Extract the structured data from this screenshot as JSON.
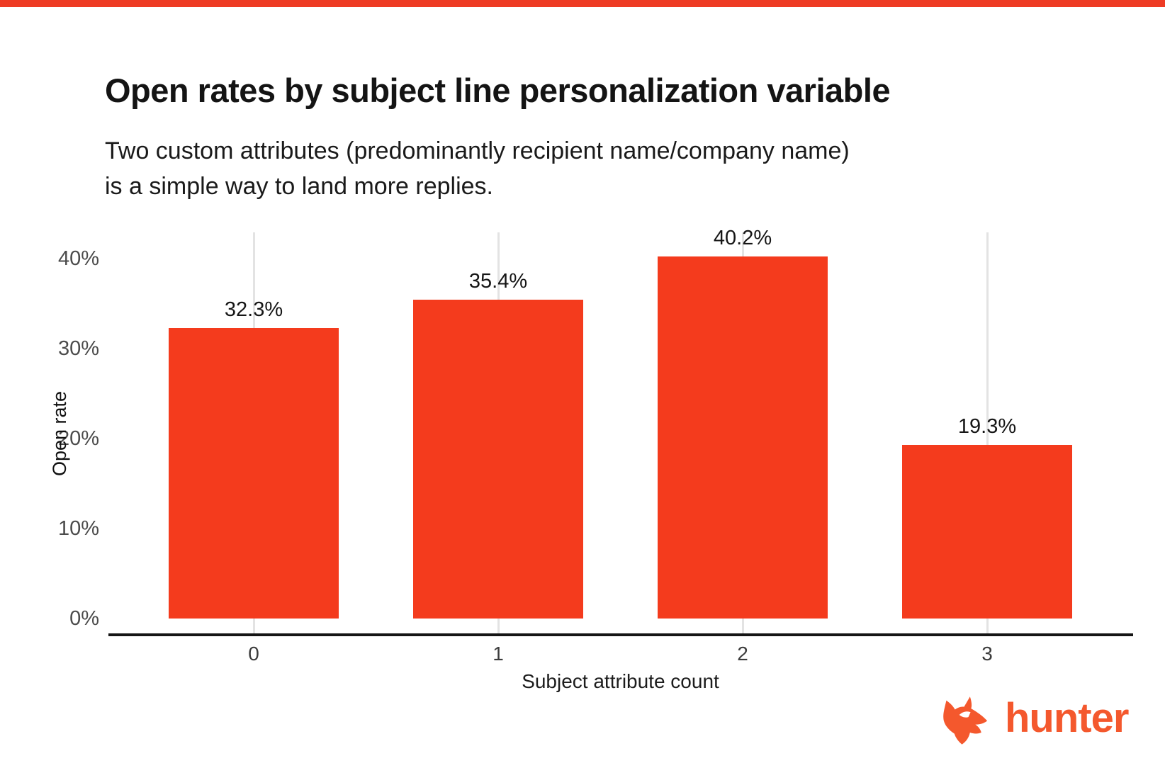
{
  "chart_data": {
    "type": "bar",
    "title": "Open rates by subject line personalization variable",
    "subtitle_lines": [
      "Two custom attributes (predominantly recipient name/company name)",
      "is a simple way to land more replies."
    ],
    "xlabel": "Subject attribute count",
    "ylabel": "Open rate",
    "categories": [
      "0",
      "1",
      "2",
      "3"
    ],
    "values": [
      32.3,
      35.4,
      40.2,
      19.3
    ],
    "value_labels": [
      "32.3%",
      "35.4%",
      "40.2%",
      "19.3%"
    ],
    "ylim": [
      0,
      43.5
    ],
    "yticks": [
      {
        "value": 0,
        "label": "0%"
      },
      {
        "value": 10,
        "label": "10%"
      },
      {
        "value": 20,
        "label": "20%"
      },
      {
        "value": 30,
        "label": "30%"
      },
      {
        "value": 40,
        "label": "40%"
      }
    ],
    "bar_color": "#f43b1d",
    "gridline_color": "#e3e3e3",
    "grid": "vertical line behind each bar",
    "legend": "none"
  },
  "branding": {
    "top_strip_color": "#ee3b24",
    "logo_text": "hunter",
    "logo_icon": "fox-icon",
    "logo_color": "#f4582d"
  }
}
